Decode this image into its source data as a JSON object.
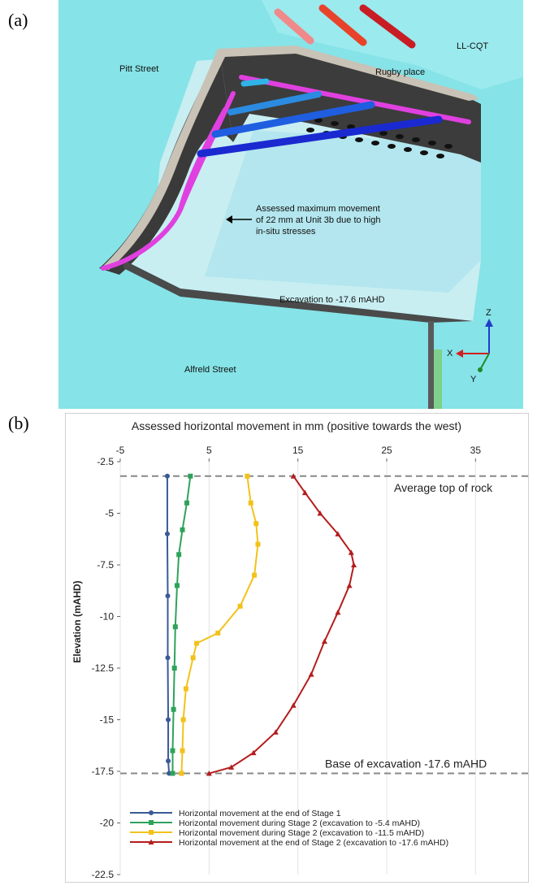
{
  "panels": {
    "a": "(a)",
    "b": "(b)"
  },
  "scene": {
    "labels": {
      "pitt": "Pitt Street",
      "rugby": "Rugby place",
      "llcqt": "LL-CQT",
      "alfreld": "Alfreld Street",
      "excavation": "Excavation to -17.6 mAHD"
    },
    "annotation": [
      "Assessed maximum movement",
      "of 22 mm at Unit 3b due to high",
      "in-situ stresses"
    ],
    "axes": {
      "x": "X",
      "y": "Y",
      "z": "Z"
    },
    "colors": {
      "ground": "#86e3e7",
      "wall": "#3c3c3c",
      "pit": "#c8eef2",
      "anchor": "#e040e0"
    }
  },
  "chart_data": {
    "type": "line",
    "title": "Assessed horizontal movement in mm (positive towards the west)",
    "xlabel": "",
    "ylabel": "Elevation (mAHD)",
    "xlim": [
      -5,
      40
    ],
    "ylim": [
      -22.5,
      -2.5
    ],
    "xticks": [
      "-5",
      "5",
      "15",
      "25",
      "35"
    ],
    "yticks": [
      "-2.5",
      "-5",
      "-7.5",
      "-10",
      "-12.5",
      "-15",
      "-17.5",
      "-20",
      "-22.5"
    ],
    "grid": true,
    "legend_position": "bottom-left",
    "annotations": [
      {
        "text": "Average top of rock",
        "y": -3.2
      },
      {
        "text": "Base of excavation -17.6 mAHD",
        "y": -17.6
      }
    ],
    "series": [
      {
        "name": "Horizontal movement at the end of Stage 1",
        "color": "#3a5a98",
        "marker": "circle",
        "x": [
          0.3,
          0.3,
          0.35,
          0.35,
          0.4,
          0.4,
          0.5
        ],
        "y": [
          -3.2,
          -6.0,
          -9.0,
          -12.0,
          -15.0,
          -17.0,
          -17.6
        ]
      },
      {
        "name": "Horizontal movement during Stage 2 (excavation to -5.4 mAHD)",
        "color": "#2ea35a",
        "marker": "square",
        "x": [
          2.9,
          2.5,
          2.0,
          1.6,
          1.4,
          1.2,
          1.1,
          1.0,
          0.9,
          0.9
        ],
        "y": [
          -3.2,
          -4.5,
          -5.8,
          -7.0,
          -8.5,
          -10.5,
          -12.5,
          -14.5,
          -16.5,
          -17.6
        ]
      },
      {
        "name": "Horizontal movement during Stage 2 (excavation to -11.5 mAHD)",
        "color": "#f2c21b",
        "marker": "square",
        "x": [
          9.3,
          9.7,
          10.3,
          10.5,
          10.1,
          8.5,
          6.0,
          3.6,
          3.2,
          2.4,
          2.1,
          2.0,
          1.9
        ],
        "y": [
          -3.2,
          -4.5,
          -5.5,
          -6.5,
          -8.0,
          -9.5,
          -10.8,
          -11.3,
          -12.0,
          -13.5,
          -15.0,
          -16.5,
          -17.6
        ]
      },
      {
        "name": "Horizontal movement at the end of Stage 2 (excavation to -17.6 mAHD)",
        "color": "#b51d1d",
        "marker": "triangle",
        "x": [
          14.5,
          15.8,
          17.5,
          19.5,
          21.0,
          21.3,
          20.8,
          19.5,
          18.0,
          16.5,
          14.5,
          12.5,
          10.0,
          7.5,
          5.0
        ],
        "y": [
          -3.2,
          -4.0,
          -5.0,
          -6.0,
          -6.9,
          -7.5,
          -8.5,
          -9.8,
          -11.2,
          -12.8,
          -14.3,
          -15.6,
          -16.6,
          -17.3,
          -17.6
        ]
      }
    ]
  }
}
